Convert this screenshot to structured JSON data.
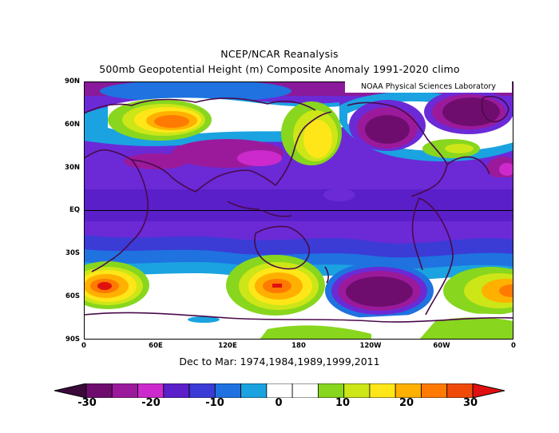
{
  "title_line1": "NCEP/NCAR Reanalysis",
  "title_line2": "500mb Geopotential Height (m) Composite Anomaly 1991-2020 climo",
  "credit": "NOAA Physical Sciences Laboratory",
  "footer": "Dec to Mar: 1974,1984,1989,1999,2011",
  "lat_labels": [
    "90N",
    "60N",
    "30N",
    "EQ",
    "30S",
    "60S",
    "90S"
  ],
  "lon_labels": [
    "0",
    "60E",
    "120E",
    "180",
    "120W",
    "60W",
    "0"
  ],
  "colorbar": {
    "labels": [
      "-30",
      "-20",
      "-10",
      "0",
      "10",
      "20",
      "30"
    ],
    "colors": [
      "#6f0d6f",
      "#9b1a9b",
      "#cc2acc",
      "#6b2ad6",
      "#3b3bd6",
      "#1f72e0",
      "#1aa3e0",
      "#ffffff",
      "#ffffff",
      "#88d61e",
      "#cce617",
      "#ffe619",
      "#ffb000",
      "#ff7a00",
      "#f04a0a"
    ],
    "under_color": "#3b0a3b",
    "over_color": "#e01010"
  },
  "layers": {
    "background": "#6b2ad6"
  }
}
